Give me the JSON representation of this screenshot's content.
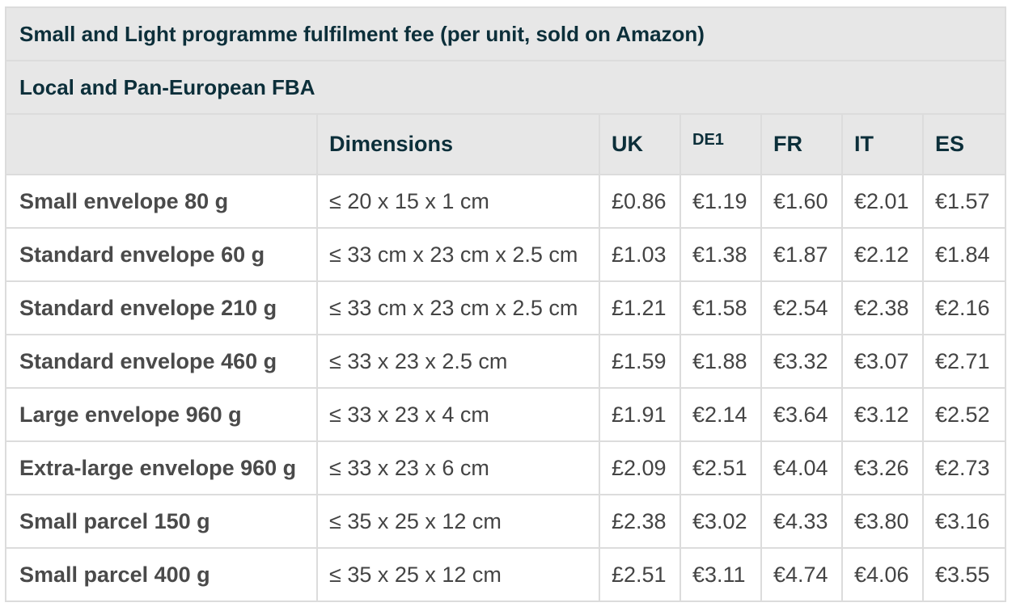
{
  "table": {
    "title": "Small and Light programme fulfilment fee (per unit, sold on Amazon)",
    "subtitle": "Local and Pan-European FBA",
    "headers": {
      "name": "",
      "dimensions": "Dimensions",
      "uk": "UK",
      "de": "DE1",
      "fr": "FR",
      "it": "IT",
      "es": "ES"
    },
    "rows": [
      {
        "name": "Small envelope 80 g",
        "dimensions": "≤ 20 x 15 x 1 cm",
        "uk": "£0.86",
        "de": "€1.19",
        "fr": "€1.60",
        "it": "€2.01",
        "es": "€1.57"
      },
      {
        "name": "Standard envelope 60 g",
        "dimensions": "≤ 33 cm x 23 cm x 2.5 cm",
        "uk": "£1.03",
        "de": "€1.38",
        "fr": "€1.87",
        "it": "€2.12",
        "es": "€1.84"
      },
      {
        "name": "Standard envelope 210 g",
        "dimensions": "≤ 33 cm x 23 cm x 2.5 cm",
        "uk": "£1.21",
        "de": "€1.58",
        "fr": "€2.54",
        "it": "€2.38",
        "es": "€2.16"
      },
      {
        "name": "Standard envelope 460 g",
        "dimensions": "≤ 33 x 23 x 2.5 cm",
        "uk": "£1.59",
        "de": "€1.88",
        "fr": "€3.32",
        "it": "€3.07",
        "es": "€2.71"
      },
      {
        "name": "Large envelope 960 g",
        "dimensions": "≤ 33 x 23 x 4 cm",
        "uk": "£1.91",
        "de": "€2.14",
        "fr": "€3.64",
        "it": "€3.12",
        "es": "€2.52"
      },
      {
        "name": "Extra-large envelope 960 g",
        "dimensions": "≤ 33 x 23 x 6 cm",
        "uk": "£2.09",
        "de": "€2.51",
        "fr": "€4.04",
        "it": "€3.26",
        "es": "€2.73"
      },
      {
        "name": "Small parcel 150 g",
        "dimensions": "≤ 35 x 25 x 12 cm",
        "uk": "£2.38",
        "de": "€3.02",
        "fr": "€4.33",
        "it": "€3.80",
        "es": "€3.16"
      },
      {
        "name": "Small parcel 400 g",
        "dimensions": "≤ 35 x 25 x 12 cm",
        "uk": "£2.51",
        "de": "€3.11",
        "fr": "€4.74",
        "it": "€4.06",
        "es": "€3.55"
      }
    ]
  }
}
